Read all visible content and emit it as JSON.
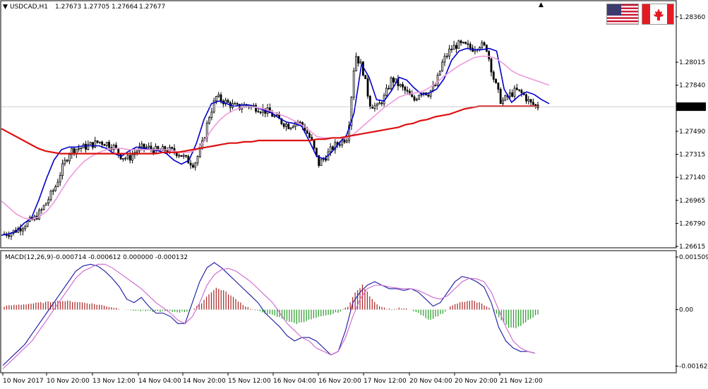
{
  "header": {
    "symbol": "USDCAD,H1",
    "open": "1.27673",
    "high": "1.27705",
    "low": "1.27664",
    "close": "1.27677"
  },
  "macd_header": {
    "label": "MACD(12,26,9)",
    "values": "-0.000714 -0.000612 0.000000 -0.000132"
  },
  "flags": {
    "us_icon": "us-flag-icon",
    "ca_icon": "canada-flag-icon"
  },
  "colors": {
    "candle": "#000000",
    "fast_ma": "#0000cc",
    "mid_ma": "#ee99dd",
    "slow_ma": "#dd1111",
    "hist_pos": "#aa2222",
    "hist_neg": "#229922",
    "macd_line": "#1a1aa0",
    "signal_line": "#cc66cc",
    "current_price_tag_bg": "#000000",
    "current_price_tag_text": "#ffffff"
  },
  "chart_data": [
    {
      "type": "candlestick",
      "symbol": "USDCAD",
      "timeframe": "H1",
      "y_ticks": [
        "1.28360",
        "1.28015",
        "1.27840",
        "1.27490",
        "1.27315",
        "1.27140",
        "1.26965",
        "1.26790",
        "1.26615"
      ],
      "y_range": [
        1.26615,
        1.28445
      ],
      "current_price": "1.27677",
      "x_ticks": [
        "10 Nov 2017",
        "10 Nov 20:00",
        "13 Nov 12:00",
        "14 Nov 04:00",
        "14 Nov 20:00",
        "15 Nov 12:00",
        "16 Nov 04:00",
        "16 Nov 20:00",
        "17 Nov 12:00",
        "20 Nov 04:00",
        "20 Nov 20:00",
        "21 Nov 12:00"
      ],
      "close_path": [
        1.2671,
        1.2672,
        1.2675,
        1.2679,
        1.2682,
        1.2688,
        1.2697,
        1.2707,
        1.2722,
        1.2734,
        1.2736,
        1.2737,
        1.2739,
        1.2741,
        1.274,
        1.2737,
        1.273,
        1.2728,
        1.2734,
        1.2737,
        1.2736,
        1.2734,
        1.2735,
        1.2734,
        1.2732,
        1.2727,
        1.2724,
        1.2737,
        1.276,
        1.2775,
        1.2772,
        1.2769,
        1.2767,
        1.2769,
        1.2768,
        1.2766,
        1.2764,
        1.276,
        1.2756,
        1.2753,
        1.2757,
        1.2752,
        1.2742,
        1.2724,
        1.273,
        1.2737,
        1.2741,
        1.2745,
        1.2808,
        1.2797,
        1.277,
        1.2767,
        1.2775,
        1.2789,
        1.2784,
        1.2779,
        1.2772,
        1.278,
        1.2778,
        1.2784,
        1.2802,
        1.2811,
        1.2815,
        1.2814,
        1.2812,
        1.2815,
        1.2812,
        1.2788,
        1.2771,
        1.2776,
        1.278,
        1.2777,
        1.277,
        1.2768
      ],
      "series": [
        {
          "name": "",
          "kind": "fast_ma",
          "values": [
            1.267,
            1.2671,
            1.2673,
            1.2679,
            1.2683,
            1.2697,
            1.2713,
            1.2727,
            1.2735,
            1.2737,
            1.2737,
            1.2738,
            1.2738,
            1.2738,
            1.2736,
            1.2732,
            1.273,
            1.2734,
            1.2737,
            1.2736,
            1.2735,
            1.2734,
            1.2732,
            1.2727,
            1.2724,
            1.2727,
            1.274,
            1.2758,
            1.277,
            1.2772,
            1.277,
            1.2768,
            1.2769,
            1.2769,
            1.2767,
            1.2765,
            1.2763,
            1.2759,
            1.2756,
            1.2755,
            1.2753,
            1.2742,
            1.273,
            1.2728,
            1.2733,
            1.274,
            1.2746,
            1.2763,
            1.28,
            1.279,
            1.2773,
            1.2772,
            1.278,
            1.279,
            1.2788,
            1.2782,
            1.2777,
            1.2778,
            1.2781,
            1.2789,
            1.2803,
            1.281,
            1.2812,
            1.2811,
            1.2811,
            1.2812,
            1.281,
            1.2781,
            1.2771,
            1.2776,
            1.2779,
            1.2777,
            1.2773,
            1.277
          ]
        },
        {
          "name": "",
          "kind": "mid_ma",
          "values": [
            1.2696,
            1.2691,
            1.2686,
            1.2683,
            1.2682,
            1.2684,
            1.2688,
            1.2695,
            1.2704,
            1.2713,
            1.272,
            1.2726,
            1.273,
            1.2733,
            1.2735,
            1.2736,
            1.2736,
            1.2735,
            1.2735,
            1.2735,
            1.2735,
            1.2735,
            1.2735,
            1.2734,
            1.2733,
            1.2733,
            1.2735,
            1.2741,
            1.275,
            1.2757,
            1.2762,
            1.2765,
            1.2767,
            1.2768,
            1.2767,
            1.2766,
            1.2764,
            1.2762,
            1.276,
            1.2757,
            1.2754,
            1.275,
            1.2745,
            1.2744,
            1.2744,
            1.2744,
            1.2744,
            1.2747,
            1.2752,
            1.2757,
            1.2762,
            1.2767,
            1.2771,
            1.2775,
            1.2777,
            1.2778,
            1.2779,
            1.2782,
            1.2786,
            1.2791,
            1.2795,
            1.2799,
            1.2802,
            1.2805,
            1.2806,
            1.2806,
            1.2804,
            1.28,
            1.2795,
            1.2792,
            1.279,
            1.2788,
            1.2786,
            1.2784
          ]
        },
        {
          "name": "",
          "kind": "slow_ma",
          "values": [
            1.2751,
            1.2748,
            1.2745,
            1.2742,
            1.2739,
            1.2736,
            1.2734,
            1.2733,
            1.2732,
            1.2732,
            1.2732,
            1.2732,
            1.2732,
            1.2732,
            1.2732,
            1.2732,
            1.2732,
            1.2732,
            1.2732,
            1.2732,
            1.2732,
            1.2732,
            1.2733,
            1.2733,
            1.2733,
            1.2734,
            1.2735,
            1.2736,
            1.2737,
            1.2738,
            1.2739,
            1.274,
            1.274,
            1.2741,
            1.2741,
            1.2742,
            1.2742,
            1.2742,
            1.2742,
            1.2742,
            1.2742,
            1.2742,
            1.2742,
            1.2743,
            1.2743,
            1.2744,
            1.2744,
            1.2745,
            1.2746,
            1.2747,
            1.2748,
            1.2749,
            1.275,
            1.2751,
            1.2752,
            1.2754,
            1.2755,
            1.2757,
            1.2758,
            1.276,
            1.2761,
            1.2762,
            1.2764,
            1.2766,
            1.2767,
            1.2768,
            1.2768,
            1.2768,
            1.2768,
            1.2768,
            1.2768,
            1.2768,
            1.2768,
            1.2768
          ]
        }
      ]
    },
    {
      "type": "macd",
      "title": "MACD(12,26,9)",
      "y_ticks": [
        "0.001509",
        "0.00",
        "-0.00162"
      ],
      "y_range": [
        -0.00175,
        0.00155
      ],
      "histogram": [
        0.0001,
        0.00012,
        0.00014,
        0.00016,
        0.00018,
        0.0002,
        0.00022,
        0.00024,
        0.00025,
        0.00024,
        0.00022,
        0.0002,
        0.00017,
        0.00014,
        0.0001,
        6e-05,
        2e-05,
        -1e-05,
        -3e-05,
        -4e-05,
        -5e-05,
        -5e-05,
        -5e-05,
        -6e-05,
        -7e-05,
        -5e-05,
        3e-05,
        0.0002,
        0.00045,
        0.00062,
        0.00055,
        0.0004,
        0.00025,
        0.0001,
        0,
        -6e-05,
        -0.00012,
        -0.00018,
        -0.00025,
        -0.00035,
        -0.0004,
        -0.00034,
        -0.00028,
        -0.00022,
        -0.00018,
        -0.00012,
        -5e-05,
        0.0001,
        0.00048,
        0.0007,
        0.0004,
        0.00015,
        5e-05,
        0.0,
        4e-05,
        2e-05,
        -4e-05,
        -0.00015,
        -0.0003,
        -0.00022,
        -0.0001,
        8e-05,
        0.00018,
        0.00023,
        0.00025,
        0.0002,
        0.0001,
        -5e-05,
        -0.0003,
        -0.0005,
        -0.00055,
        -0.0004,
        -0.00025,
        -0.00013
      ],
      "series": [
        {
          "name": "",
          "kind": "macd_line",
          "values": [
            -0.0016,
            -0.0014,
            -0.0012,
            -0.001,
            -0.0007,
            -0.0004,
            -0.0001,
            0.0002,
            0.0005,
            0.0008,
            0.0011,
            0.00125,
            0.0013,
            0.00125,
            0.0011,
            0.0009,
            0.00065,
            0.0003,
            0.0002,
            0.00035,
            0.0001,
            -0.0001,
            -0.0001,
            -0.0002,
            -0.0004,
            -0.0004,
            0.0002,
            0.0008,
            0.0012,
            0.00135,
            0.0012,
            0.001,
            0.0008,
            0.0006,
            0.0004,
            0.0002,
            -0.0001,
            -0.0003,
            -0.0005,
            -0.00075,
            -0.0009,
            -0.0008,
            -0.0008,
            -0.0009,
            -0.0011,
            -0.0013,
            -0.0012,
            -0.0006,
            0.0002,
            0.0005,
            0.0007,
            0.0008,
            0.0007,
            0.0006,
            0.0006,
            0.00055,
            0.0006,
            0.0005,
            0.0003,
            0.0001,
            0.0002,
            0.0005,
            0.0008,
            0.00095,
            0.0009,
            0.0008,
            0.00065,
            0.0002,
            -0.0005,
            -0.0009,
            -0.0011,
            -0.0012,
            -0.0012,
            -0.00125
          ]
        },
        {
          "name": "",
          "kind": "signal_line",
          "values": [
            -0.0017,
            -0.0015,
            -0.0013,
            -0.0011,
            -0.0009,
            -0.0006,
            -0.0003,
            0.0,
            0.0003,
            0.0006,
            0.0009,
            0.0011,
            0.0012,
            0.0013,
            0.0013,
            0.0012,
            0.00105,
            0.0009,
            0.00075,
            0.0006,
            0.0004,
            0.0002,
            5e-05,
            -0.0001,
            -0.0003,
            -0.0004,
            -0.0002,
            0.0002,
            0.0007,
            0.001,
            0.00115,
            0.00118,
            0.0011,
            0.00095,
            0.0008,
            0.0006,
            0.0004,
            0.0002,
            -0.0001,
            -0.0004,
            -0.0006,
            -0.0008,
            -0.0009,
            -0.0011,
            -0.0012,
            -0.0013,
            -0.0012,
            -0.0008,
            -0.0002,
            0.0003,
            0.0006,
            0.0007,
            0.0007,
            0.00065,
            0.00062,
            0.0006,
            0.0006,
            0.00055,
            0.00045,
            0.00035,
            0.0003,
            0.0004,
            0.0006,
            0.0008,
            0.0009,
            0.00088,
            0.0008,
            0.0005,
            0.0,
            -0.0005,
            -0.0009,
            -0.0011,
            -0.0012,
            -0.00125
          ]
        }
      ]
    }
  ]
}
